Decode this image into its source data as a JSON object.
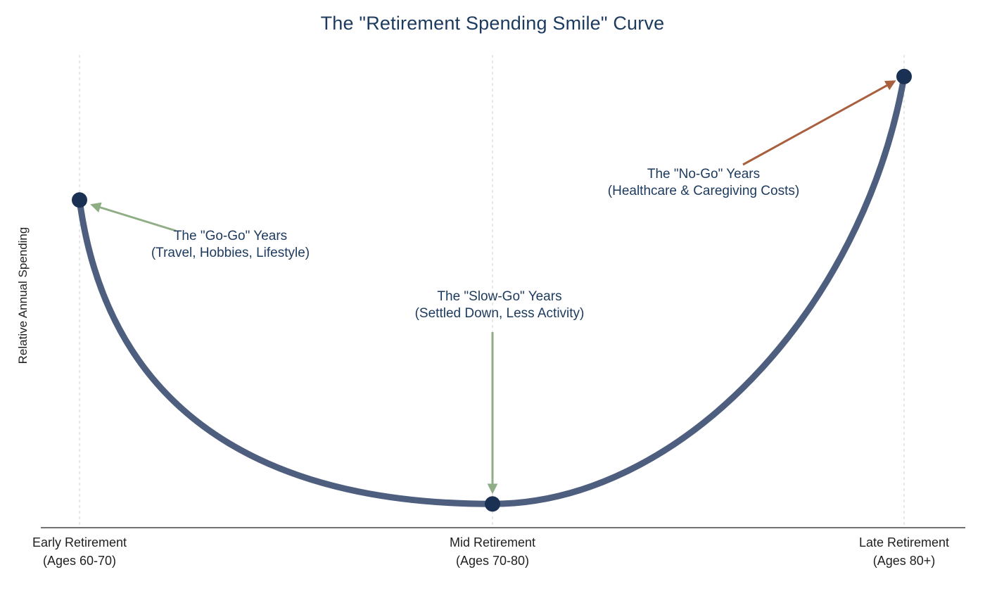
{
  "chart_data": {
    "type": "line",
    "title": "The \"Retirement Spending Smile\" Curve",
    "ylabel": "Relative Annual Spending",
    "xlabel": "",
    "ylim": [
      0,
      1
    ],
    "grid": "vertical-dashed",
    "legend": "none",
    "categories": [
      "Early Retirement (Ages 60-70)",
      "Mid Retirement (Ages 70-80)",
      "Late Retirement (Ages 80+)"
    ],
    "x_tick_labels": [
      {
        "line1": "Early Retirement",
        "line2": "(Ages 60-70)"
      },
      {
        "line1": "Mid Retirement",
        "line2": "(Ages 70-80)"
      },
      {
        "line1": "Late Retirement",
        "line2": "(Ages 80+)"
      }
    ],
    "series": [
      {
        "name": "Relative Annual Spending",
        "values": [
          0.69,
          0.05,
          0.95
        ]
      }
    ],
    "annotations": [
      {
        "line1": "The \"Go-Go\" Years",
        "line2": "(Travel, Hobbies, Lifestyle)",
        "target": "early",
        "color": "green"
      },
      {
        "line1": "The \"Slow-Go\" Years",
        "line2": "(Settled Down, Less Activity)",
        "target": "mid",
        "color": "green"
      },
      {
        "line1": "The \"No-Go\" Years",
        "line2": "(Healthcare & Caregiving Costs)",
        "target": "late",
        "color": "brown"
      }
    ],
    "colors": {
      "title": "#1c3a5e",
      "curve": "#4e5e7e",
      "point": "#1b3153",
      "annotation_text": "#1c3a5e",
      "annotation_green": "#8fae85",
      "annotation_brown": "#a8603f",
      "gridline": "#d9d9d9",
      "axis": "#444444",
      "tick_text": "#1f1f1f"
    }
  }
}
